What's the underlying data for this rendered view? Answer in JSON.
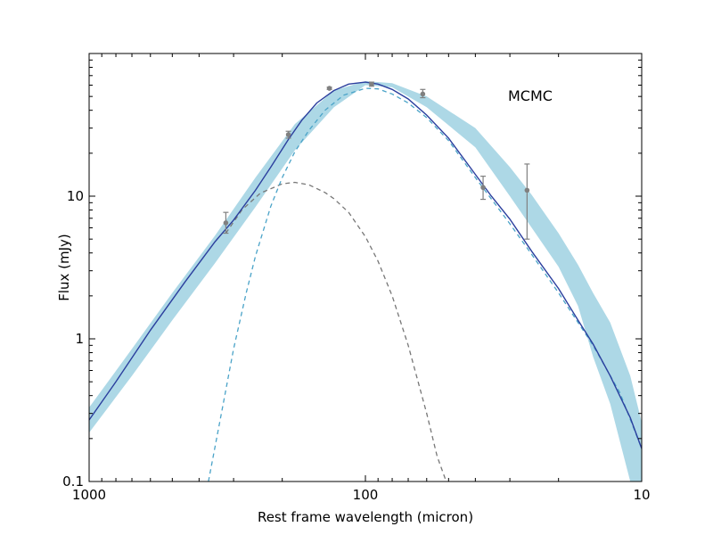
{
  "chart_data": {
    "type": "line",
    "title": "",
    "annotation": "MCMC",
    "xlabel": "Rest frame wavelength (micron)",
    "ylabel": "Flux (mJy)",
    "x_scale": "log",
    "y_scale": "log",
    "x_reversed": true,
    "xlim": [
      1000,
      10
    ],
    "ylim": [
      0.1,
      100
    ],
    "x_ticks": [
      {
        "value": 1000,
        "label": "1000"
      },
      {
        "value": 100,
        "label": "100"
      },
      {
        "value": 10,
        "label": "10"
      }
    ],
    "y_ticks": [
      {
        "value": 0.1,
        "label": "0.1"
      },
      {
        "value": 1,
        "label": "1"
      },
      {
        "value": 10,
        "label": "10"
      }
    ],
    "grid": false,
    "colors": {
      "total": "#2b3f9e",
      "band": "#add8e6",
      "warm": "#4aa3c8",
      "cold": "#777777",
      "points": "#808080"
    },
    "band": {
      "x": [
        1000,
        700,
        500,
        350,
        250,
        180,
        130,
        100,
        80,
        60,
        40,
        30,
        25,
        20,
        17,
        15,
        13,
        11,
        10
      ],
      "lower": [
        0.22,
        0.55,
        1.35,
        3.4,
        8.4,
        21,
        42,
        60,
        58,
        42,
        22,
        10,
        6.0,
        3.2,
        1.7,
        0.75,
        0.35,
        0.1,
        0.06
      ],
      "upper": [
        0.33,
        0.85,
        2.1,
        5.3,
        13.5,
        32,
        55,
        64,
        62,
        50,
        30,
        16,
        10.2,
        5.5,
        3.3,
        2.1,
        1.3,
        0.55,
        0.26
      ]
    },
    "series": [
      {
        "key": "total",
        "style": "solid",
        "x": [
          1000,
          800,
          600,
          450,
          350,
          300,
          250,
          220,
          190,
          170,
          150,
          130,
          115,
          100,
          90,
          80,
          70,
          60,
          50,
          40,
          35,
          30,
          25,
          20,
          17,
          15,
          13,
          11,
          10
        ],
        "y": [
          0.27,
          0.5,
          1.15,
          2.5,
          4.8,
          6.8,
          11,
          16,
          25,
          34,
          45,
          55,
          61,
          63,
          61,
          56,
          48,
          37,
          25.5,
          14.2,
          10,
          6.9,
          4.1,
          2.25,
          1.35,
          0.92,
          0.55,
          0.28,
          0.17
        ]
      },
      {
        "key": "warm",
        "style": "dashed",
        "x": [
          370,
          330,
          300,
          270,
          250,
          220,
          200,
          180,
          160,
          140,
          120,
          100,
          90,
          80,
          70,
          60,
          50,
          40,
          30,
          25,
          20,
          15,
          12,
          10
        ],
        "y": [
          0.1,
          0.32,
          0.85,
          2.1,
          3.8,
          8.5,
          13.5,
          20.5,
          29,
          40,
          51,
          57,
          56.5,
          52,
          45,
          35.5,
          24.5,
          13.5,
          6.4,
          3.9,
          2.1,
          0.9,
          0.42,
          0.17
        ]
      },
      {
        "key": "cold",
        "style": "dashed",
        "x": [
          320,
          280,
          240,
          200,
          180,
          160,
          140,
          130,
          115,
          100,
          90,
          80,
          70,
          60,
          55,
          50
        ],
        "y": [
          5.5,
          8.0,
          10.5,
          12.2,
          12.5,
          12.0,
          10.6,
          9.6,
          7.7,
          5.2,
          3.5,
          2.0,
          0.9,
          0.3,
          0.15,
          0.09
        ]
      }
    ],
    "points": {
      "x": [
        320,
        190,
        135,
        95,
        62,
        37.5,
        26
      ],
      "y": [
        6.5,
        27,
        57,
        61,
        52,
        11.5,
        11
      ],
      "err_low": [
        5.5,
        25.5,
        56,
        59,
        49,
        9.5,
        5.0
      ],
      "err_high": [
        7.7,
        28.5,
        58,
        63,
        56,
        13.8,
        16.8
      ]
    }
  }
}
